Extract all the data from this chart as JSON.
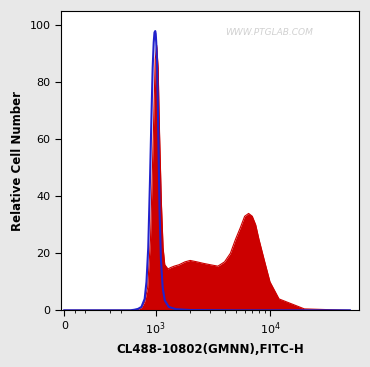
{
  "title": "",
  "xlabel": "CL488-10802(GMNN),FITC-H",
  "ylabel": "Relative Cell Number",
  "ylim": [
    0,
    105
  ],
  "yticks": [
    0,
    20,
    40,
    60,
    80,
    100
  ],
  "watermark": "WWW.PTGLAB.COM",
  "background_color": "#e8e8e8",
  "plot_bg_color": "#ffffff",
  "blue_line_color": "#2222cc",
  "red_fill_color": "#cc0000",
  "red_fill_alpha": 1.0,
  "blue_x": [
    0,
    100,
    300,
    500,
    600,
    650,
    700,
    750,
    800,
    830,
    860,
    890,
    920,
    940,
    960,
    975,
    990,
    1000,
    1010,
    1025,
    1040,
    1060,
    1080,
    1110,
    1150,
    1200,
    1300,
    1500,
    2000,
    5000,
    10000,
    50000
  ],
  "blue_y": [
    0,
    0,
    0,
    0,
    0,
    0.2,
    0.5,
    1.2,
    4.0,
    10.0,
    22.0,
    45.0,
    70.0,
    85.0,
    94.0,
    97.5,
    98.0,
    97.0,
    94.0,
    88.0,
    75.0,
    55.0,
    35.0,
    18.0,
    8.0,
    3.5,
    1.2,
    0.4,
    0.1,
    0.0,
    0.0,
    0.0
  ],
  "red_x": [
    0,
    100,
    300,
    500,
    650,
    700,
    750,
    800,
    850,
    900,
    950,
    990,
    1020,
    1050,
    1080,
    1120,
    1160,
    1200,
    1280,
    1350,
    1450,
    1600,
    1800,
    2000,
    2300,
    2600,
    3000,
    3500,
    4000,
    4500,
    5000,
    5500,
    6000,
    6500,
    7000,
    7500,
    8000,
    9000,
    10000,
    12000,
    20000,
    50000
  ],
  "red_y": [
    0,
    0,
    0,
    0,
    0,
    0.3,
    1.0,
    3.0,
    8.0,
    25.0,
    60.0,
    88.0,
    93.0,
    85.0,
    62.0,
    38.0,
    22.0,
    16.0,
    14.5,
    15.0,
    15.5,
    16.0,
    17.0,
    17.5,
    17.0,
    16.5,
    16.0,
    15.5,
    17.0,
    20.0,
    25.0,
    29.0,
    33.0,
    34.0,
    33.0,
    30.0,
    25.0,
    17.0,
    10.0,
    4.0,
    0.5,
    0.0
  ]
}
